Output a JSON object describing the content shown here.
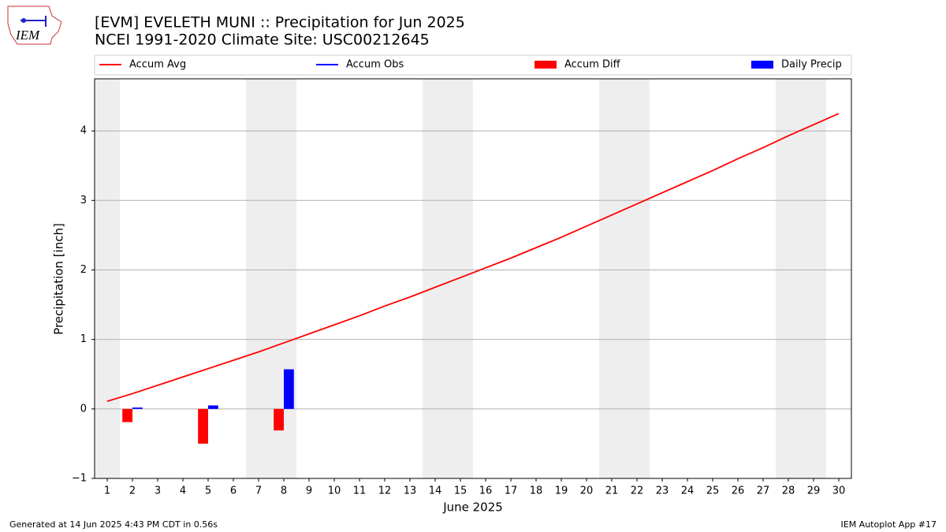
{
  "logo_text": "IEM",
  "footer_left": "Generated at 14 Jun 2025 4:43 PM CDT in 0.56s",
  "footer_right": "IEM Autoplot App #17",
  "chart_data": {
    "type": "line-bar",
    "title": "[EVM] EVELETH MUNI :: Precipitation for Jun 2025",
    "subtitle": "NCEI 1991-2020 Climate Site: USC00212645",
    "x_label": "June 2025",
    "y_label": "Precipitation [inch]",
    "x": [
      1,
      2,
      3,
      4,
      5,
      6,
      7,
      8,
      9,
      10,
      11,
      12,
      13,
      14,
      15,
      16,
      17,
      18,
      19,
      20,
      21,
      22,
      23,
      24,
      25,
      26,
      27,
      28,
      29,
      30
    ],
    "xlim": [
      0.5,
      30.5
    ],
    "xticks": [
      1,
      2,
      3,
      4,
      5,
      6,
      7,
      8,
      9,
      10,
      11,
      12,
      13,
      14,
      15,
      16,
      17,
      18,
      19,
      20,
      21,
      22,
      23,
      24,
      25,
      26,
      27,
      28,
      29,
      30
    ],
    "ylim": [
      -1,
      4.75
    ],
    "yticks": [
      {
        "value": -1,
        "label": "−1"
      },
      0,
      1,
      2,
      3,
      4
    ],
    "grid": true,
    "shaded_days": [
      1,
      7,
      8,
      14,
      15,
      21,
      22,
      28,
      29
    ],
    "series": [
      {
        "name": "Accum Avg",
        "kind": "line",
        "color": "#ff0000",
        "values": [
          0.11,
          0.22,
          0.34,
          0.46,
          0.58,
          0.7,
          0.82,
          0.95,
          1.08,
          1.21,
          1.34,
          1.48,
          1.61,
          1.75,
          1.89,
          2.03,
          2.17,
          2.32,
          2.47,
          2.63,
          2.79,
          2.95,
          3.11,
          3.27,
          3.43,
          3.6,
          3.76,
          3.93,
          4.09,
          4.25
        ]
      },
      {
        "name": "Accum Obs",
        "kind": "line",
        "color": "#0000ff",
        "values": [
          null,
          null,
          null,
          null,
          null,
          null,
          null,
          null,
          null,
          null,
          null,
          null,
          null,
          null,
          null,
          null,
          null,
          null,
          null,
          null,
          null,
          null,
          null,
          null,
          null,
          null,
          null,
          null,
          null,
          null
        ]
      },
      {
        "name": "Accum Diff",
        "kind": "bar",
        "offset": -0.2,
        "color": "#ff0000",
        "values": [
          null,
          -0.19,
          null,
          null,
          -0.5,
          null,
          null,
          -0.31,
          null,
          null,
          null,
          null,
          null,
          null,
          null,
          null,
          null,
          null,
          null,
          null,
          null,
          null,
          null,
          null,
          null,
          null,
          null,
          null,
          null,
          null
        ]
      },
      {
        "name": "Daily Precip",
        "kind": "bar",
        "offset": 0.2,
        "color": "#0000ff",
        "values": [
          null,
          0.02,
          null,
          null,
          0.05,
          null,
          null,
          0.57,
          null,
          null,
          null,
          null,
          null,
          null,
          null,
          null,
          null,
          null,
          null,
          null,
          null,
          null,
          null,
          null,
          null,
          null,
          null,
          null,
          null,
          null
        ]
      }
    ]
  }
}
